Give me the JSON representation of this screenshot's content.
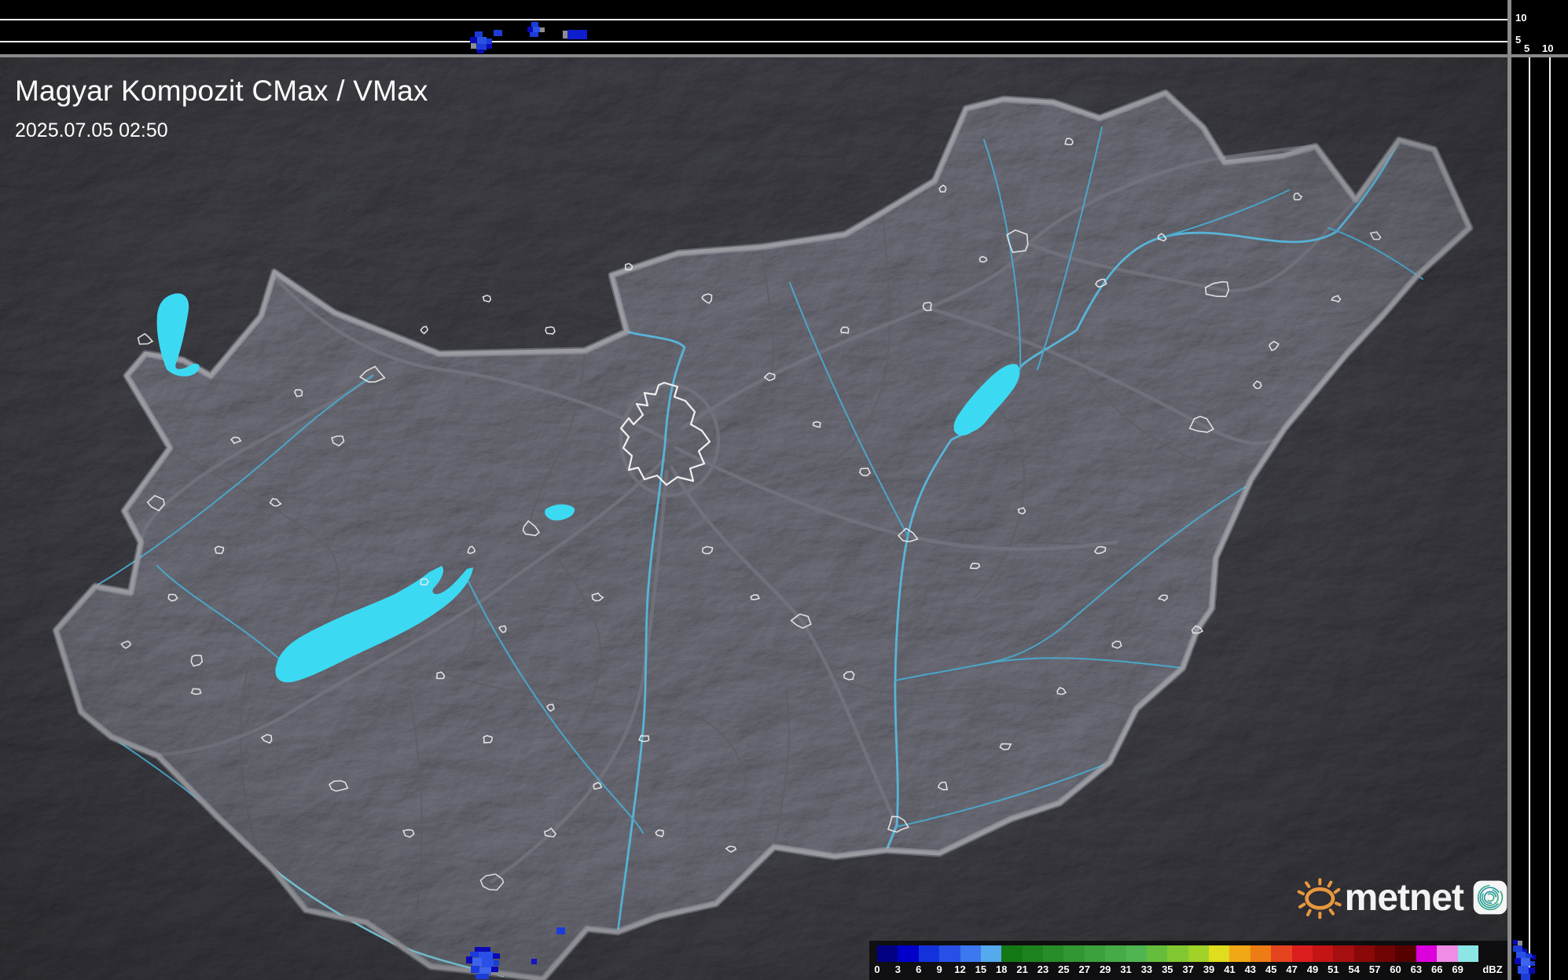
{
  "header": {
    "title": "Magyar Kompozit CMax / VMax",
    "timestamp": "2025.07.05 02:50"
  },
  "height_axes": {
    "top_panel_km": [
      "10",
      "5"
    ],
    "right_panel_km": [
      "5",
      "10"
    ]
  },
  "colorbar": {
    "unit": "dBZ",
    "ticks": [
      "0",
      "3",
      "6",
      "9",
      "12",
      "15",
      "18",
      "21",
      "23",
      "25",
      "27",
      "29",
      "31",
      "33",
      "35",
      "37",
      "39",
      "41",
      "43",
      "45",
      "47",
      "49",
      "51",
      "54",
      "57",
      "60",
      "63",
      "66",
      "69"
    ],
    "colors": [
      "#000080",
      "#0000C8",
      "#1432DC",
      "#2850E6",
      "#3C78F0",
      "#55AAEE",
      "#147814",
      "#1E821E",
      "#288C28",
      "#329632",
      "#3CA03C",
      "#46AA46",
      "#50B450",
      "#64BE3C",
      "#82C832",
      "#A0D228",
      "#E0DC1E",
      "#F0A814",
      "#EE7C14",
      "#E6441E",
      "#DC1E1E",
      "#C41414",
      "#A50F0F",
      "#8A0808",
      "#700303",
      "#560000",
      "#DC00DC",
      "#EE8CE6",
      "#8CE6E6"
    ]
  },
  "branding": {
    "logo_text": "metnet"
  },
  "colors": {
    "water": "#3CD9F2",
    "panel_grid": "#FFFFFF",
    "separator": "#8A8A8A",
    "country_border": "#9A9AA0"
  },
  "radar_echoes": {
    "top_panel": [
      [
        604,
        40,
        10,
        8,
        "#1C3CD8"
      ],
      [
        598,
        47,
        9,
        8,
        "#0A0AB4"
      ],
      [
        607,
        47,
        12,
        9,
        "#2B50E6"
      ],
      [
        619,
        49,
        7,
        7,
        "#1C3CD8"
      ],
      [
        599,
        55,
        7,
        7,
        "#8E8E8E"
      ],
      [
        606,
        56,
        13,
        8,
        "#1C3CD8"
      ],
      [
        619,
        56,
        7,
        6,
        "#0A0AB4"
      ],
      [
        607,
        63,
        9,
        5,
        "#0A0AB4"
      ],
      [
        628,
        38,
        11,
        8,
        "#1C3CD8"
      ],
      [
        676,
        28,
        9,
        7,
        "#1C3CD8"
      ],
      [
        671,
        34,
        7,
        7,
        "#0A0AB4"
      ],
      [
        678,
        34,
        9,
        7,
        "#2B50E6"
      ],
      [
        687,
        35,
        6,
        6,
        "#8E8E8E"
      ],
      [
        674,
        41,
        11,
        6,
        "#1C3CD8"
      ],
      [
        716,
        39,
        6,
        10,
        "#8E8E8E"
      ],
      [
        722,
        38,
        25,
        12,
        "#0F1ECC"
      ]
    ],
    "map": [
      [
        604,
        1205,
        20,
        7,
        "#0A0AB4"
      ],
      [
        598,
        1211,
        11,
        7,
        "#1C3CD8"
      ],
      [
        609,
        1211,
        19,
        9,
        "#2B50E6"
      ],
      [
        627,
        1213,
        9,
        7,
        "#0A0AB4"
      ],
      [
        593,
        1217,
        8,
        9,
        "#0A0AB4"
      ],
      [
        601,
        1219,
        12,
        11,
        "#3E64EC"
      ],
      [
        613,
        1220,
        15,
        11,
        "#2B50E6"
      ],
      [
        628,
        1222,
        7,
        7,
        "#1C3CD8"
      ],
      [
        599,
        1229,
        11,
        9,
        "#1C3CD8"
      ],
      [
        610,
        1231,
        15,
        9,
        "#3E64EC"
      ],
      [
        625,
        1230,
        9,
        7,
        "#0A0AB4"
      ],
      [
        605,
        1239,
        17,
        7,
        "#1C3CD8"
      ],
      [
        676,
        1220,
        7,
        7,
        "#1414C8"
      ],
      [
        708,
        1180,
        11,
        9,
        "#1C3CD8"
      ]
    ],
    "right_panel": [
      [
        1925,
        1196,
        6,
        6,
        "#0A0AB4"
      ],
      [
        1931,
        1197,
        6,
        6,
        "#8E8E8E"
      ],
      [
        1925,
        1203,
        12,
        8,
        "#1C3CD8"
      ],
      [
        1937,
        1207,
        6,
        6,
        "#0A0AB4"
      ],
      [
        1929,
        1211,
        12,
        8,
        "#2B50E6"
      ],
      [
        1941,
        1213,
        8,
        6,
        "#1C3CD8"
      ],
      [
        1949,
        1215,
        5,
        6,
        "#0A0AB4"
      ],
      [
        1927,
        1219,
        8,
        8,
        "#0A0AB4"
      ],
      [
        1935,
        1219,
        12,
        10,
        "#3E64EC"
      ],
      [
        1947,
        1223,
        6,
        6,
        "#1C3CD8"
      ],
      [
        1931,
        1229,
        14,
        10,
        "#2B50E6"
      ],
      [
        1945,
        1231,
        8,
        8,
        "#0A0AB4"
      ],
      [
        1935,
        1239,
        12,
        8,
        "#1C3CD8"
      ]
    ]
  }
}
